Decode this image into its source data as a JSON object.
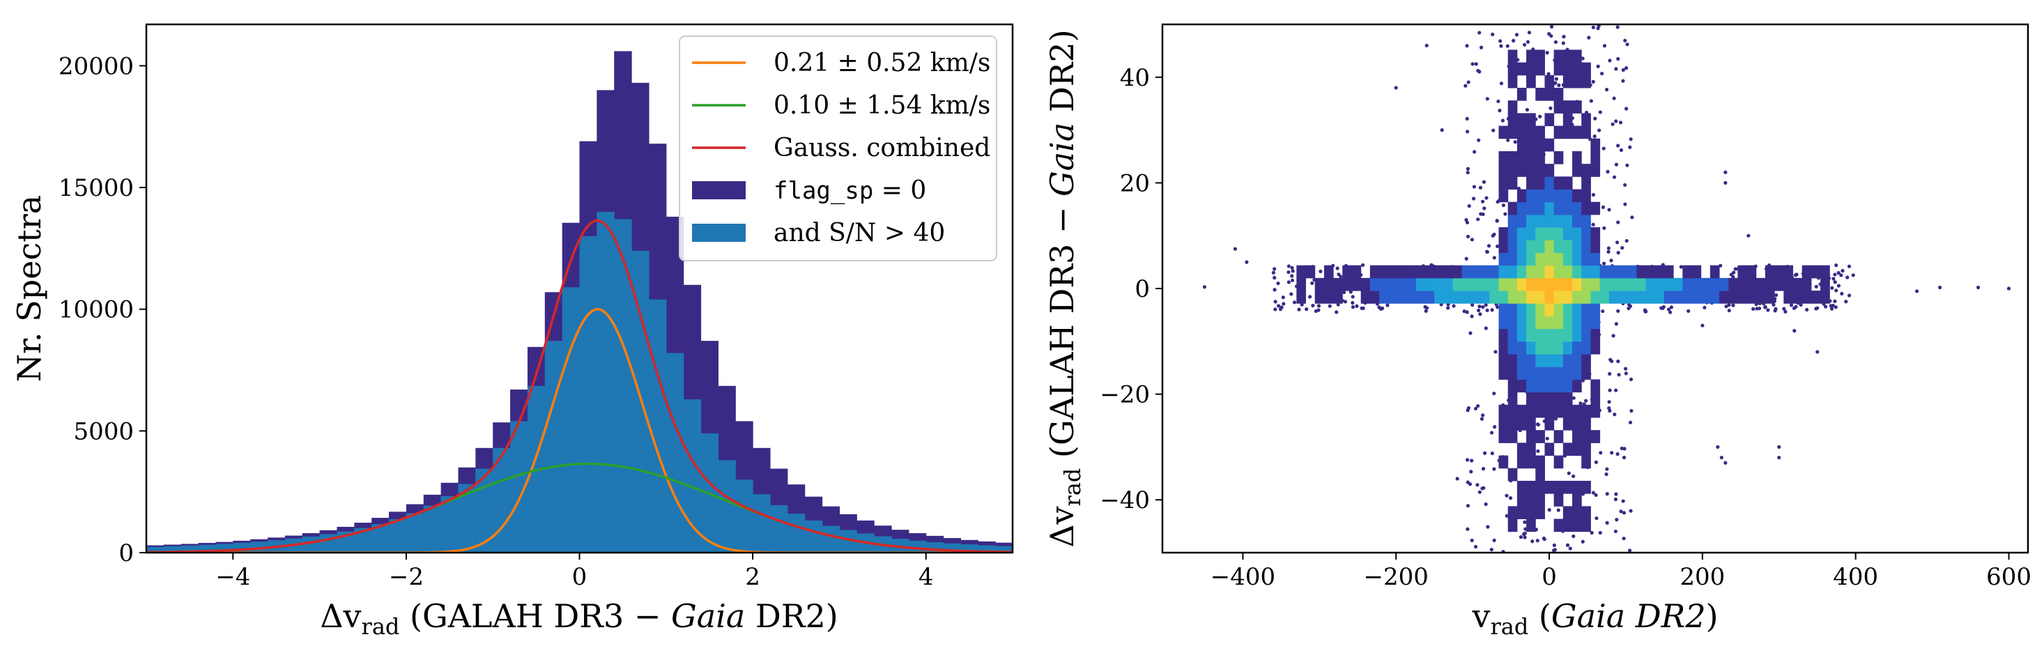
{
  "chart_data": [
    {
      "type": "histogram",
      "xlabel": "Δv_rad (GALAH DR3 − Gaia DR2)",
      "xlabel_parts": {
        "pre": "Δv",
        "sub": "rad",
        "post1": " (GALAH DR3 − ",
        "ital": "Gaia",
        "post2": " DR2)"
      },
      "ylabel": "Nr. Spectra",
      "xlim": [
        -5,
        5
      ],
      "ylim": [
        0,
        21700
      ],
      "xticks": [
        -4,
        -2,
        0,
        2,
        4
      ],
      "xtick_labels": [
        "−4",
        "−2",
        "0",
        "2",
        "4"
      ],
      "yticks": [
        0,
        5000,
        10000,
        15000,
        20000
      ],
      "ytick_labels": [
        "0",
        "5000",
        "10000",
        "15000",
        "20000"
      ],
      "bin_edges_range": [
        -5,
        5
      ],
      "bin_width": 0.2,
      "series": [
        {
          "name": "flag_sp = 0",
          "color": "#3b2a85",
          "values": [
            300,
            330,
            360,
            400,
            440,
            490,
            550,
            620,
            700,
            800,
            920,
            1060,
            1230,
            1430,
            1680,
            1990,
            2380,
            2870,
            3500,
            4300,
            5350,
            6700,
            8450,
            10700,
            13550,
            16900,
            19000,
            20600,
            19300,
            16800,
            13800,
            11000,
            8700,
            6850,
            5400,
            4300,
            3450,
            2800,
            2300,
            1900,
            1580,
            1320,
            1110,
            940,
            800,
            690,
            600,
            520,
            460,
            410
          ]
        },
        {
          "name": "and S/N > 40",
          "color": "#1f77b4",
          "values": [
            230,
            260,
            290,
            320,
            360,
            400,
            450,
            510,
            580,
            660,
            760,
            870,
            1010,
            1170,
            1370,
            1620,
            1930,
            2320,
            2820,
            3450,
            4300,
            5400,
            6850,
            8700,
            10900,
            13000,
            14000,
            13700,
            12400,
            10400,
            8200,
            6300,
            4900,
            3800,
            3000,
            2400,
            1950,
            1600,
            1320,
            1100,
            930,
            790,
            670,
            570,
            490,
            430,
            380,
            340,
            300,
            270
          ]
        },
        {
          "name": "0.21 ± 0.52 km/s",
          "color": "#ff7f0e",
          "type": "gaussian",
          "mu": 0.21,
          "sigma": 0.52,
          "amplitude": 10000
        },
        {
          "name": "0.10 ± 1.54 km/s",
          "color": "#2ca02c",
          "type": "gaussian",
          "mu": 0.1,
          "sigma": 1.54,
          "amplitude": 3650
        },
        {
          "name": "Gauss. combined",
          "color": "#d62728",
          "type": "gaussian_sum"
        }
      ],
      "legend": {
        "placement": "top-right",
        "entries": [
          {
            "label": "0.21 ± 0.52 km/s",
            "kind": "line",
            "color": "#ff7f0e"
          },
          {
            "label": "0.10 ± 1.54 km/s",
            "kind": "line",
            "color": "#2ca02c"
          },
          {
            "label": "Gauss. combined",
            "kind": "line",
            "color": "#d62728"
          },
          {
            "label": "flag_sp = 0",
            "kind": "patch",
            "color": "#3b2a85",
            "mono": "flag_sp",
            "rest": " = 0"
          },
          {
            "label": "and S/N > 40",
            "kind": "patch",
            "color": "#1f77b4"
          }
        ]
      },
      "grid": false
    },
    {
      "type": "heatmap",
      "xlabel": "v_rad (Gaia DR2)",
      "xlabel_parts": {
        "pre": "v",
        "sub": "rad",
        "post1": " (",
        "ital": "Gaia DR2",
        "post2": ")"
      },
      "ylabel": "Δv_rad (GALAH DR3 − Gaia DR2)",
      "ylabel_parts": {
        "pre": "Δv",
        "sub": "rad",
        "post1": " (GALAH DR3 − ",
        "ital": "Gaia",
        "post2": " DR2)"
      },
      "xlim": [
        -505,
        625
      ],
      "ylim": [
        -50,
        50
      ],
      "xticks": [
        -400,
        -200,
        0,
        200,
        400,
        600
      ],
      "xtick_labels": [
        "−400",
        "−200",
        "0",
        "200",
        "400",
        "600"
      ],
      "yticks": [
        -40,
        -20,
        0,
        20,
        40
      ],
      "ytick_labels": [
        "−40",
        "−20",
        "0",
        "20",
        "40"
      ],
      "colormap": [
        "#3b2a85",
        "#2a5fcf",
        "#1f9fd8",
        "#3cc6b0",
        "#9fd85a",
        "#f5d23a",
        "#ffb52a"
      ],
      "density_center": [
        0,
        0
      ],
      "grid": false
    }
  ]
}
